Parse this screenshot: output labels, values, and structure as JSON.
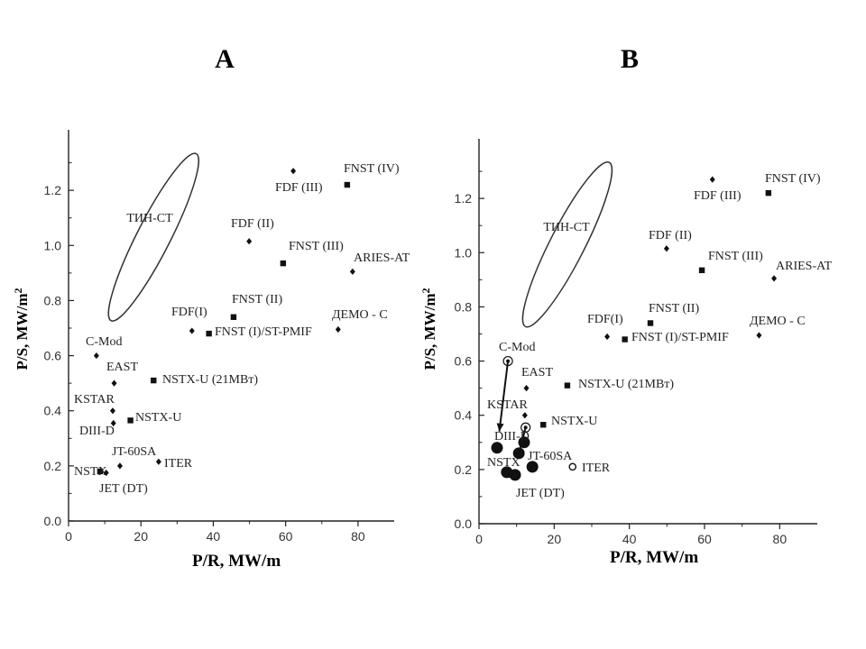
{
  "chart_data": [
    {
      "type": "scatter",
      "panel_label": "A",
      "xlabel_parts": [
        "P/R",
        ", MW/m"
      ],
      "ylabel_parts": [
        "P/S",
        ", MW/m",
        "2"
      ],
      "xlim": [
        0,
        90
      ],
      "ylim": [
        0,
        1.4
      ],
      "xticks": [
        0,
        20,
        40,
        60,
        80
      ],
      "xtick_labels": [
        "0",
        "20",
        "40",
        "60",
        "80"
      ],
      "yticks": [
        0,
        0.2,
        0.4,
        0.6,
        0.8,
        1.0,
        1.2
      ],
      "ytick_labels": [
        "0.0",
        "0.2",
        "0.4",
        "0.6",
        "0.8",
        "1.0",
        "1.2"
      ],
      "region": {
        "label": "ТИН-СТ",
        "cx": 23.5,
        "cy": 1.03,
        "rx": 4.6,
        "ry": 0.34,
        "tilt": 27
      },
      "points": [
        {
          "label": "C-Mod",
          "x": 7.7,
          "y": 0.6,
          "marker": "diamond"
        },
        {
          "label": "EAST",
          "x": 12.6,
          "y": 0.5,
          "marker": "diamond"
        },
        {
          "label": "KSTAR",
          "x": 12.2,
          "y": 0.4,
          "marker": "diamond"
        },
        {
          "label": "DIII-D",
          "x": 12.4,
          "y": 0.355,
          "marker": "diamond"
        },
        {
          "label": "NSTX",
          "x": 8.7,
          "y": 0.18,
          "marker": "square"
        },
        {
          "label": "JET (DT)",
          "x": 10.4,
          "y": 0.175,
          "marker": "diamond"
        },
        {
          "label": "JT-60SA",
          "x": 14.2,
          "y": 0.2,
          "marker": "diamond"
        },
        {
          "label": "ITER",
          "x": 24.9,
          "y": 0.215,
          "marker": "diamond"
        },
        {
          "label": "NSTX-U",
          "x": 17.1,
          "y": 0.365,
          "marker": "square"
        },
        {
          "label": "NSTX-U (21MBт)",
          "x": 23.5,
          "y": 0.51,
          "marker": "square"
        },
        {
          "label": "FDF(I)",
          "x": 34.1,
          "y": 0.69,
          "marker": "diamond"
        },
        {
          "label": "FNST (I)/ST-PMIF",
          "x": 38.8,
          "y": 0.68,
          "marker": "square"
        },
        {
          "label": "FNST (II)",
          "x": 45.6,
          "y": 0.74,
          "marker": "square"
        },
        {
          "label": "FDF (II)",
          "x": 49.9,
          "y": 1.015,
          "marker": "diamond"
        },
        {
          "label": "FDF (III)",
          "x": 62.1,
          "y": 1.27,
          "marker": "diamond"
        },
        {
          "label": "FNST (IV)",
          "x": 77.0,
          "y": 1.22,
          "marker": "square"
        },
        {
          "label": "FNST (III)",
          "x": 59.3,
          "y": 0.935,
          "marker": "square"
        },
        {
          "label": "ARIES-AT",
          "x": 78.5,
          "y": 0.905,
          "marker": "diamond"
        },
        {
          "label": "ДЕМО - С",
          "x": 74.5,
          "y": 0.695,
          "marker": "diamond"
        }
      ]
    },
    {
      "type": "scatter",
      "panel_label": "B",
      "xlabel_parts": [
        "P/R",
        ", MW/m"
      ],
      "ylabel_parts": [
        "P/S",
        ", MW/m",
        "2"
      ],
      "xlim": [
        0,
        90
      ],
      "ylim": [
        0,
        1.4
      ],
      "xticks": [
        0,
        20,
        40,
        60,
        80
      ],
      "xtick_labels": [
        "0",
        "20",
        "40",
        "60",
        "80"
      ],
      "yticks": [
        0,
        0.2,
        0.4,
        0.6,
        0.8,
        1.0,
        1.2
      ],
      "ytick_labels": [
        "0.0",
        "0.2",
        "0.4",
        "0.6",
        "0.8",
        "1.0",
        "1.2"
      ],
      "region": {
        "label": "ТИН-СТ",
        "cx": 23.5,
        "cy": 1.03,
        "rx": 4.6,
        "ry": 0.34,
        "tilt": 27
      },
      "points": [
        {
          "label": "C-Mod",
          "x": 7.7,
          "y": 0.6,
          "marker": "ringed"
        },
        {
          "label": "EAST",
          "x": 12.6,
          "y": 0.5,
          "marker": "diamond"
        },
        {
          "label": "KSTAR",
          "x": 12.2,
          "y": 0.4,
          "marker": "diamond"
        },
        {
          "label": "DIII-D",
          "x": 12.4,
          "y": 0.355,
          "marker": "ringed"
        },
        {
          "label": "NSTX",
          "x": 8.7,
          "y": 0.18,
          "marker": "square"
        },
        {
          "label": "JET (DT)",
          "x": 10.4,
          "y": 0.175,
          "marker": "diamond"
        },
        {
          "label": "JT-60SA",
          "x": 14.2,
          "y": 0.2,
          "marker": "diamond"
        },
        {
          "label": "ITER",
          "x": 24.9,
          "y": 0.21,
          "marker": "open-circle"
        },
        {
          "label": "NSTX-U",
          "x": 17.1,
          "y": 0.365,
          "marker": "square"
        },
        {
          "label": "NSTX-U (21MBт)",
          "x": 23.5,
          "y": 0.51,
          "marker": "square"
        },
        {
          "label": "FDF(I)",
          "x": 34.1,
          "y": 0.69,
          "marker": "diamond"
        },
        {
          "label": "FNST (I)/ST-PMIF",
          "x": 38.8,
          "y": 0.68,
          "marker": "square"
        },
        {
          "label": "FNST (II)",
          "x": 45.6,
          "y": 0.74,
          "marker": "square"
        },
        {
          "label": "FDF (II)",
          "x": 49.9,
          "y": 1.015,
          "marker": "diamond"
        },
        {
          "label": "FDF (III)",
          "x": 62.1,
          "y": 1.27,
          "marker": "diamond"
        },
        {
          "label": "FNST (IV)",
          "x": 77.0,
          "y": 1.22,
          "marker": "square"
        },
        {
          "label": "FNST (III)",
          "x": 59.3,
          "y": 0.935,
          "marker": "square"
        },
        {
          "label": "ARIES-AT",
          "x": 78.5,
          "y": 0.905,
          "marker": "diamond"
        },
        {
          "label": "ДЕМО - С",
          "x": 74.5,
          "y": 0.695,
          "marker": "diamond"
        }
      ],
      "highlight_points": [
        {
          "x": 4.8,
          "y": 0.28
        },
        {
          "x": 10.6,
          "y": 0.26
        },
        {
          "x": 12.0,
          "y": 0.3
        },
        {
          "x": 7.4,
          "y": 0.19
        },
        {
          "x": 9.6,
          "y": 0.18
        },
        {
          "x": 14.2,
          "y": 0.21
        }
      ],
      "arrows": [
        {
          "from": [
            7.7,
            0.6
          ],
          "to": [
            5.4,
            0.34
          ]
        },
        {
          "from": [
            12.4,
            0.355
          ],
          "to": [
            11.0,
            0.28
          ]
        }
      ]
    }
  ]
}
